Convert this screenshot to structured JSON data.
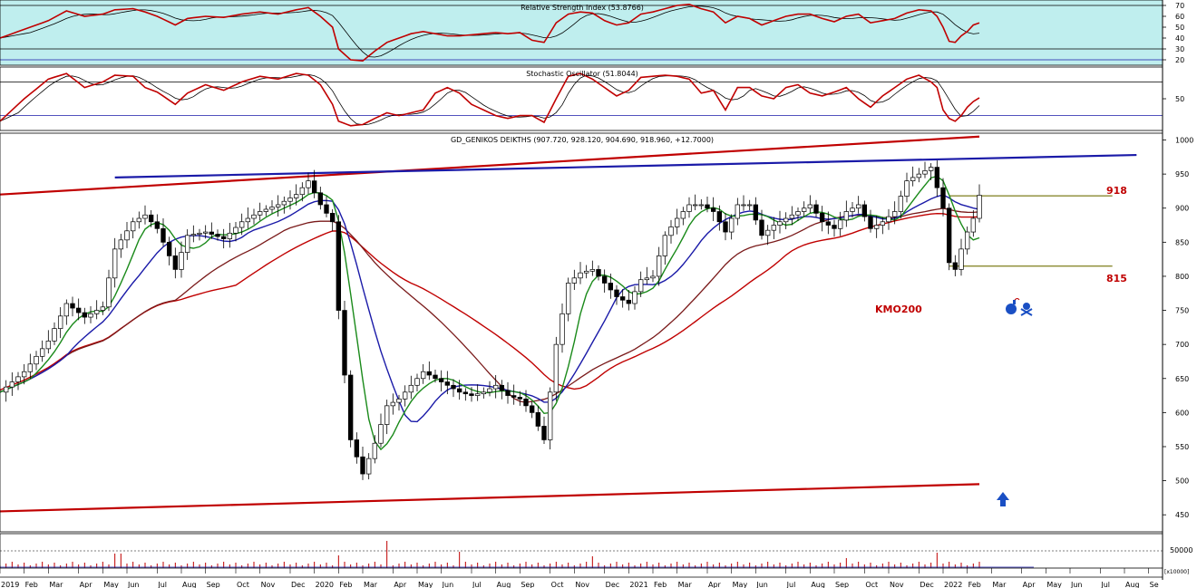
{
  "chart_data": {
    "type": "candlestick",
    "panels": {
      "rsi": {
        "title": "Relative Strength Index (53.8766)",
        "yticks": [
          70,
          60,
          50,
          40,
          30,
          20
        ],
        "ylim": [
          15,
          75
        ],
        "levels": [
          70,
          30
        ]
      },
      "stochastic": {
        "title": "Stochastic Oscillator (51.8044)",
        "yticks": [
          50
        ],
        "ylim": [
          0,
          100
        ],
        "levels": [
          80,
          20
        ]
      },
      "price": {
        "title": "GD_GENIKOS DEIKTHS (907.720, 928.120, 904.690, 918.960, +12.7000)",
        "yticks": [
          1000,
          950,
          900,
          850,
          800,
          750,
          700,
          650,
          600,
          550,
          500,
          450
        ],
        "ylim": [
          425,
          1010
        ]
      },
      "volume": {
        "ytick_label": "50000",
        "scale_label": "[x10000]"
      }
    },
    "x_labels": [
      "2019",
      "Feb",
      "Mar",
      "Apr",
      "May",
      "Jun",
      "Jul",
      "Aug",
      "Sep",
      "Oct",
      "Nov",
      "Dec",
      "2020",
      "Feb",
      "Mar",
      "Apr",
      "May",
      "Jun",
      "Jul",
      "Aug",
      "Sep",
      "Oct",
      "Nov",
      "Dec",
      "2021",
      "Feb",
      "Mar",
      "Apr",
      "May",
      "Jun",
      "Jul",
      "Aug",
      "Sep",
      "Oct",
      "Nov",
      "Dec",
      "2022",
      "Feb",
      "Mar",
      "Apr",
      "May",
      "Jun",
      "Jul",
      "Aug",
      "Se"
    ],
    "x_label_weeks": [
      0,
      4,
      8,
      13,
      17,
      21,
      26,
      30,
      34,
      39,
      43,
      48,
      52,
      56,
      60,
      65,
      69,
      73,
      78,
      82,
      86,
      91,
      95,
      100,
      104,
      108,
      112,
      117,
      121,
      125,
      130,
      134,
      138,
      143,
      147,
      152,
      156,
      160,
      164,
      169,
      173,
      177,
      182,
      186,
      190
    ],
    "close_points": [
      [
        0,
        630
      ],
      [
        4,
        660
      ],
      [
        8,
        705
      ],
      [
        11,
        760
      ],
      [
        14,
        740
      ],
      [
        17,
        755
      ],
      [
        19,
        840
      ],
      [
        22,
        880
      ],
      [
        24,
        890
      ],
      [
        26,
        870
      ],
      [
        29,
        810
      ],
      [
        31,
        860
      ],
      [
        34,
        865
      ],
      [
        37,
        855
      ],
      [
        40,
        880
      ],
      [
        43,
        895
      ],
      [
        46,
        905
      ],
      [
        49,
        920
      ],
      [
        51,
        940
      ],
      [
        53,
        905
      ],
      [
        55,
        880
      ],
      [
        56,
        750
      ],
      [
        58,
        560
      ],
      [
        60,
        510
      ],
      [
        62,
        555
      ],
      [
        64,
        610
      ],
      [
        66,
        620
      ],
      [
        68,
        640
      ],
      [
        70,
        660
      ],
      [
        72,
        650
      ],
      [
        74,
        640
      ],
      [
        76,
        630
      ],
      [
        78,
        625
      ],
      [
        80,
        630
      ],
      [
        82,
        640
      ],
      [
        84,
        625
      ],
      [
        86,
        620
      ],
      [
        88,
        600
      ],
      [
        90,
        560
      ],
      [
        92,
        700
      ],
      [
        94,
        790
      ],
      [
        96,
        805
      ],
      [
        98,
        810
      ],
      [
        100,
        790
      ],
      [
        102,
        770
      ],
      [
        104,
        760
      ],
      [
        106,
        795
      ],
      [
        108,
        800
      ],
      [
        110,
        860
      ],
      [
        112,
        885
      ],
      [
        114,
        905
      ],
      [
        116,
        905
      ],
      [
        118,
        895
      ],
      [
        120,
        865
      ],
      [
        122,
        905
      ],
      [
        124,
        905
      ],
      [
        126,
        860
      ],
      [
        128,
        875
      ],
      [
        130,
        885
      ],
      [
        132,
        895
      ],
      [
        134,
        905
      ],
      [
        136,
        880
      ],
      [
        138,
        870
      ],
      [
        140,
        895
      ],
      [
        142,
        905
      ],
      [
        144,
        870
      ],
      [
        146,
        880
      ],
      [
        148,
        895
      ],
      [
        150,
        940
      ],
      [
        152,
        950
      ],
      [
        154,
        960
      ],
      [
        155,
        930
      ],
      [
        156,
        900
      ],
      [
        157,
        820
      ],
      [
        158,
        810
      ],
      [
        159,
        840
      ],
      [
        160,
        865
      ],
      [
        161,
        885
      ],
      [
        162,
        918.96
      ]
    ],
    "rsi_points": [
      [
        0,
        40
      ],
      [
        4,
        48
      ],
      [
        8,
        56
      ],
      [
        11,
        65
      ],
      [
        14,
        60
      ],
      [
        17,
        62
      ],
      [
        19,
        66
      ],
      [
        22,
        67
      ],
      [
        24,
        64
      ],
      [
        26,
        60
      ],
      [
        29,
        52
      ],
      [
        31,
        58
      ],
      [
        34,
        60
      ],
      [
        37,
        59
      ],
      [
        40,
        62
      ],
      [
        43,
        64
      ],
      [
        46,
        62
      ],
      [
        49,
        66
      ],
      [
        51,
        68
      ],
      [
        53,
        60
      ],
      [
        55,
        50
      ],
      [
        56,
        30
      ],
      [
        58,
        20
      ],
      [
        60,
        19
      ],
      [
        62,
        28
      ],
      [
        64,
        36
      ],
      [
        66,
        40
      ],
      [
        68,
        44
      ],
      [
        70,
        46
      ],
      [
        72,
        44
      ],
      [
        74,
        42
      ],
      [
        76,
        42
      ],
      [
        78,
        43
      ],
      [
        80,
        44
      ],
      [
        82,
        45
      ],
      [
        84,
        44
      ],
      [
        86,
        45
      ],
      [
        88,
        38
      ],
      [
        90,
        36
      ],
      [
        92,
        54
      ],
      [
        94,
        62
      ],
      [
        96,
        64
      ],
      [
        98,
        63
      ],
      [
        100,
        56
      ],
      [
        102,
        52
      ],
      [
        104,
        54
      ],
      [
        106,
        62
      ],
      [
        108,
        64
      ],
      [
        110,
        67
      ],
      [
        112,
        70
      ],
      [
        114,
        71
      ],
      [
        116,
        67
      ],
      [
        118,
        64
      ],
      [
        120,
        54
      ],
      [
        122,
        60
      ],
      [
        124,
        58
      ],
      [
        126,
        52
      ],
      [
        128,
        56
      ],
      [
        130,
        60
      ],
      [
        132,
        62
      ],
      [
        134,
        62
      ],
      [
        136,
        58
      ],
      [
        138,
        55
      ],
      [
        140,
        60
      ],
      [
        142,
        62
      ],
      [
        144,
        54
      ],
      [
        146,
        56
      ],
      [
        148,
        58
      ],
      [
        150,
        63
      ],
      [
        152,
        66
      ],
      [
        154,
        65
      ],
      [
        155,
        60
      ],
      [
        156,
        50
      ],
      [
        157,
        37
      ],
      [
        158,
        36
      ],
      [
        159,
        42
      ],
      [
        160,
        46
      ],
      [
        161,
        52
      ],
      [
        162,
        53.88
      ]
    ],
    "stoch_points": [
      [
        0,
        10
      ],
      [
        4,
        50
      ],
      [
        8,
        85
      ],
      [
        11,
        95
      ],
      [
        14,
        70
      ],
      [
        17,
        80
      ],
      [
        19,
        92
      ],
      [
        22,
        90
      ],
      [
        24,
        70
      ],
      [
        26,
        62
      ],
      [
        29,
        40
      ],
      [
        31,
        60
      ],
      [
        34,
        75
      ],
      [
        37,
        65
      ],
      [
        40,
        80
      ],
      [
        43,
        90
      ],
      [
        46,
        85
      ],
      [
        49,
        95
      ],
      [
        51,
        92
      ],
      [
        53,
        75
      ],
      [
        55,
        40
      ],
      [
        56,
        10
      ],
      [
        58,
        2
      ],
      [
        60,
        4
      ],
      [
        62,
        15
      ],
      [
        64,
        25
      ],
      [
        66,
        20
      ],
      [
        68,
        25
      ],
      [
        70,
        30
      ],
      [
        72,
        60
      ],
      [
        74,
        70
      ],
      [
        76,
        60
      ],
      [
        78,
        40
      ],
      [
        80,
        30
      ],
      [
        82,
        20
      ],
      [
        84,
        15
      ],
      [
        86,
        20
      ],
      [
        88,
        20
      ],
      [
        90,
        8
      ],
      [
        92,
        50
      ],
      [
        94,
        90
      ],
      [
        96,
        95
      ],
      [
        98,
        85
      ],
      [
        100,
        70
      ],
      [
        102,
        55
      ],
      [
        104,
        65
      ],
      [
        106,
        88
      ],
      [
        108,
        90
      ],
      [
        110,
        92
      ],
      [
        112,
        90
      ],
      [
        114,
        85
      ],
      [
        116,
        60
      ],
      [
        118,
        65
      ],
      [
        120,
        30
      ],
      [
        122,
        70
      ],
      [
        124,
        70
      ],
      [
        126,
        55
      ],
      [
        128,
        50
      ],
      [
        130,
        70
      ],
      [
        132,
        75
      ],
      [
        134,
        60
      ],
      [
        136,
        55
      ],
      [
        138,
        62
      ],
      [
        140,
        70
      ],
      [
        142,
        50
      ],
      [
        144,
        35
      ],
      [
        146,
        55
      ],
      [
        148,
        70
      ],
      [
        150,
        85
      ],
      [
        152,
        92
      ],
      [
        154,
        80
      ],
      [
        155,
        70
      ],
      [
        156,
        30
      ],
      [
        157,
        15
      ],
      [
        158,
        10
      ],
      [
        159,
        20
      ],
      [
        160,
        35
      ],
      [
        161,
        45
      ],
      [
        162,
        51.8
      ]
    ],
    "trendlines": [
      {
        "color": "#c00000",
        "from": [
          0,
          920
        ],
        "to": [
          162,
          1005
        ]
      },
      {
        "color": "#1a1aa8",
        "from": [
          19,
          945
        ],
        "to": [
          188,
          978
        ]
      },
      {
        "color": "#c00000",
        "from": [
          0,
          455
        ],
        "to": [
          162,
          495
        ]
      },
      {
        "color": "#8a8a30",
        "from": [
          157,
          918
        ],
        "to": [
          184,
          918
        ]
      },
      {
        "color": "#8a8a30",
        "from": [
          157,
          815
        ],
        "to": [
          184,
          815
        ]
      }
    ],
    "annotations": [
      {
        "text": "918",
        "value": 918
      },
      {
        "text": "815",
        "value": 815
      },
      {
        "text": "KMO200",
        "value": 745
      }
    ],
    "colors": {
      "oscillator_bg": "#bfeeee",
      "price_line_red": "#c00000",
      "ma_green": "#1a8a1a",
      "ma_blue": "#1a1aa8",
      "ma_darkred": "#7a1a1a",
      "ma_red": "#c00000",
      "arrow_blue": "#1a4fc4"
    },
    "icons": [
      "bomb-icon",
      "skull-crossbones-icon",
      "up-arrow-icon"
    ]
  }
}
